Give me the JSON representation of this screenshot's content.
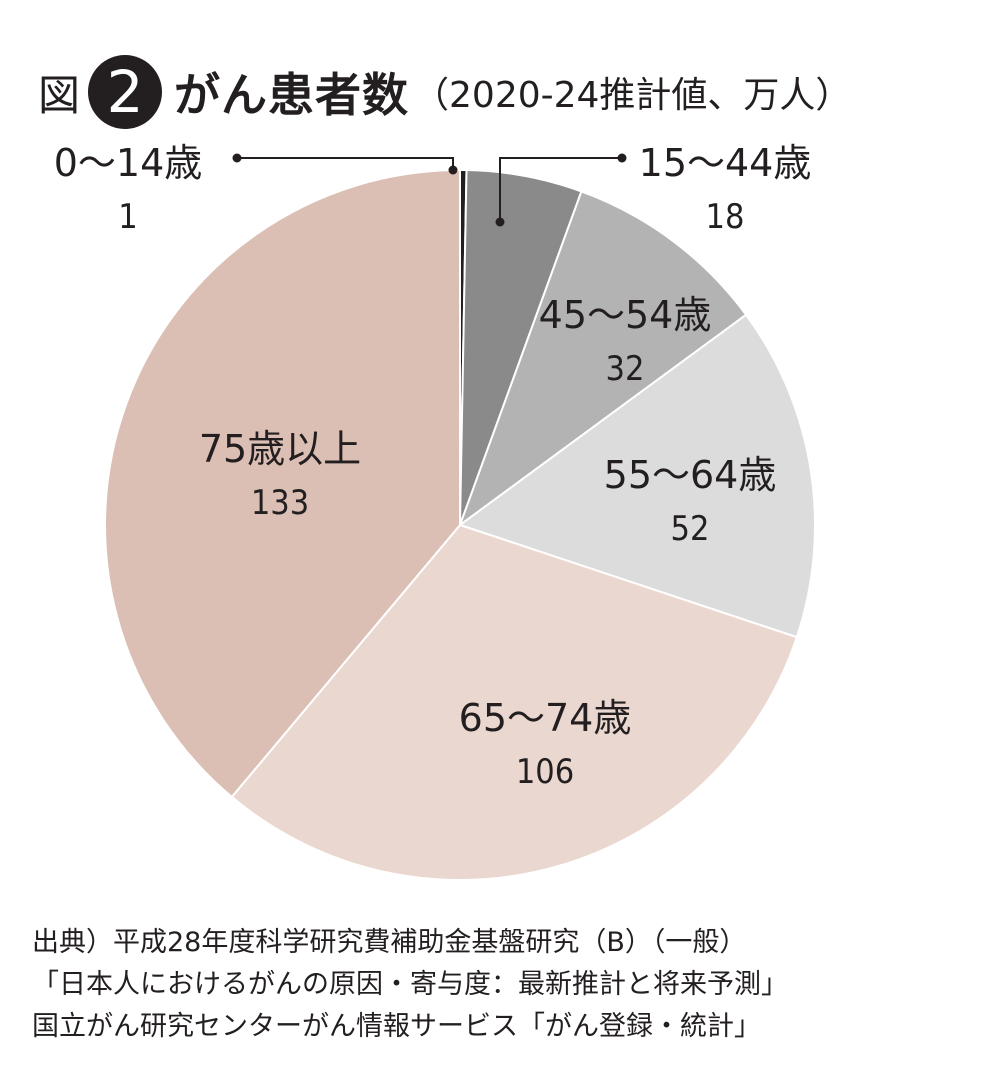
{
  "header": {
    "fig_label": "図",
    "fig_number": "2",
    "title": "がん患者数",
    "subtitle": "（2020-24推計値、万人）"
  },
  "chart_data": {
    "type": "pie",
    "title": "がん患者数",
    "subtitle": "（2020-24推計値、万人）",
    "unit": "万人",
    "start_angle_deg": 0,
    "direction": "clockwise",
    "slices": [
      {
        "label": "0〜14歳",
        "value": 1,
        "color": "#231f20"
      },
      {
        "label": "15〜44歳",
        "value": 18,
        "color": "#8a8a8a"
      },
      {
        "label": "45〜54歳",
        "value": 32,
        "color": "#b3b3b3"
      },
      {
        "label": "55〜64歳",
        "value": 52,
        "color": "#dcdcdc"
      },
      {
        "label": "65〜74歳",
        "value": 106,
        "color": "#ead7d0"
      },
      {
        "label": "75歳以上",
        "value": 133,
        "color": "#dcbfb4"
      }
    ]
  },
  "source": {
    "lines": [
      "出典）平成28年度科学研究費補助金基盤研究（B）（一般）",
      "「日本人におけるがんの原因・寄与度：最新推計と将来予測」",
      "国立がん研究センターがん情報サービス「がん登録・統計」"
    ]
  }
}
